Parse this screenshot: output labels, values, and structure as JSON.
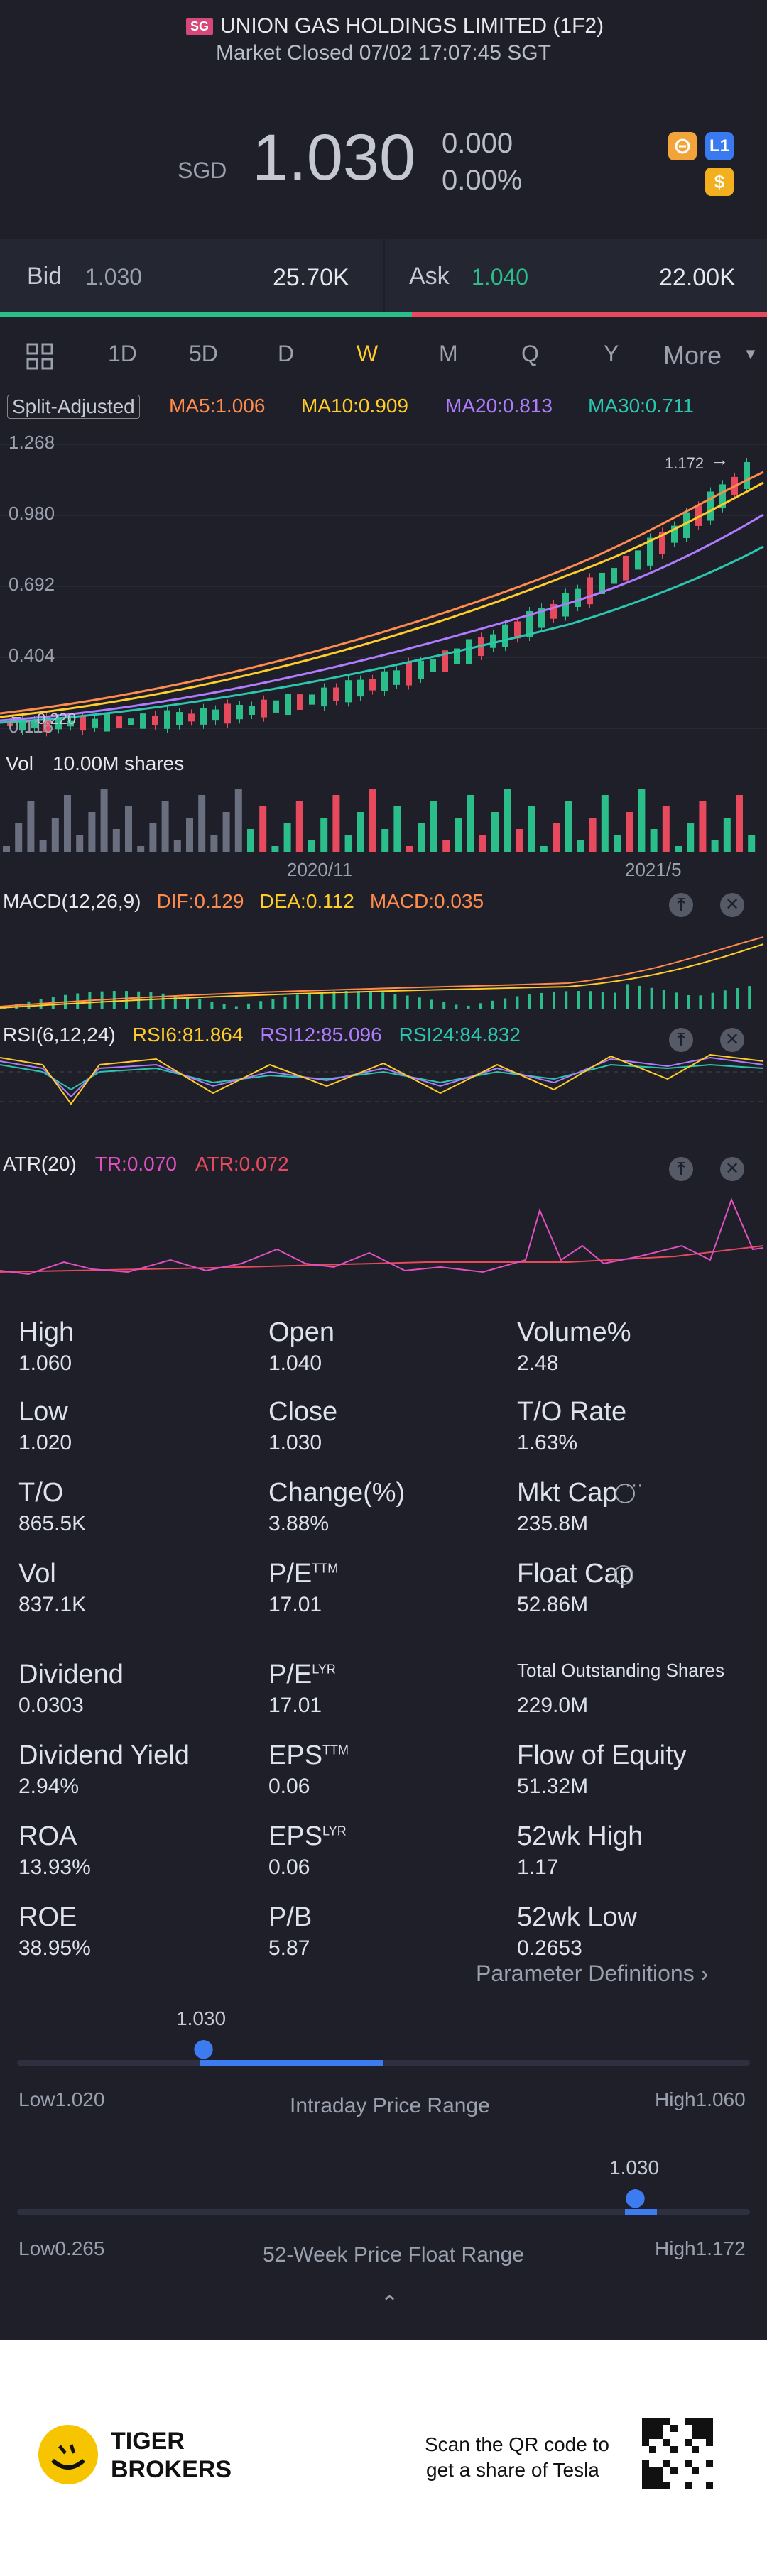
{
  "header": {
    "exchange_badge": "SG",
    "company": "UNION GAS HOLDINGS LIMITED (1F2)",
    "status": "Market Closed 07/02 17:07:45 SGT"
  },
  "quote": {
    "currency": "SGD",
    "price": "1.030",
    "change": "0.000",
    "change_pct": "0.00%",
    "badge_l1": "L1",
    "badge_dollar": "$"
  },
  "orderbook": {
    "bid_label": "Bid",
    "bid_price": "1.030",
    "bid_size": "25.70K",
    "ask_label": "Ask",
    "ask_price": "1.040",
    "ask_size": "22.00K"
  },
  "tabs": [
    "1D",
    "5D",
    "D",
    "W",
    "M",
    "Q",
    "Y"
  ],
  "active_tab": "W",
  "more_label": "More",
  "ma_bar": {
    "split": "Split-Adjusted",
    "ma5": "MA5:1.006",
    "ma10": "MA10:0.909",
    "ma20": "MA20:0.813",
    "ma30": "MA30:0.711"
  },
  "price_axis": [
    "1.268",
    "0.980",
    "0.692",
    "0.404",
    "0.116"
  ],
  "price_annotations": {
    "high_label": "1.172",
    "low_label": "0.220"
  },
  "volume": {
    "label": "Vol",
    "value": "10.00M shares",
    "dates": [
      "2020/11",
      "2021/5"
    ]
  },
  "macd": {
    "label": "MACD(12,26,9)",
    "dif": "DIF:0.129",
    "dea": "DEA:0.112",
    "macd": "MACD:0.035"
  },
  "rsi": {
    "label": "RSI(6,12,24)",
    "rsi6": "RSI6:81.864",
    "rsi12": "RSI12:85.096",
    "rsi24": "RSI24:84.832"
  },
  "atr": {
    "label": "ATR(20)",
    "tr": "TR:0.070",
    "atr": "ATR:0.072"
  },
  "colors": {
    "up": "#2bbd8a",
    "down": "#e64a5c",
    "ma5": "#ff8b4d",
    "ma10": "#ffcc29",
    "ma20": "#b07cff",
    "ma30": "#2cc6b0",
    "accent": "#ffcc29",
    "range_fill": "#3d7cf0"
  },
  "stats": {
    "col1": [
      {
        "label": "High",
        "value": "1.060"
      },
      {
        "label": "Low",
        "value": "1.020"
      },
      {
        "label": "T/O",
        "value": "865.5K"
      },
      {
        "label": "Vol",
        "value": "837.1K"
      },
      {
        "label": "Dividend",
        "value": "0.0303"
      },
      {
        "label": "Dividend Yield",
        "value": "2.94%"
      },
      {
        "label": "ROA",
        "value": "13.93%"
      },
      {
        "label": "ROE",
        "value": "38.95%"
      }
    ],
    "col2": [
      {
        "label": "Open",
        "value": "1.040",
        "sup": ""
      },
      {
        "label": "Close",
        "value": "1.030",
        "sup": ""
      },
      {
        "label": "Change(%)",
        "value": "3.88%",
        "sup": ""
      },
      {
        "label": "P/E",
        "value": "17.01",
        "sup": "TTM"
      },
      {
        "label": "P/E",
        "value": "17.01",
        "sup": "LYR"
      },
      {
        "label": "EPS",
        "value": "0.06",
        "sup": "TTM"
      },
      {
        "label": "EPS",
        "value": "0.06",
        "sup": "LYR"
      },
      {
        "label": "P/B",
        "value": "5.87",
        "sup": ""
      }
    ],
    "col3": [
      {
        "label": "Volume%",
        "value": "2.48"
      },
      {
        "label": "T/O Rate",
        "value": "1.63%"
      },
      {
        "label": "Mkt Cap",
        "value": "235.8M"
      },
      {
        "label": "Float Cap",
        "value": "52.86M"
      },
      {
        "label": "Total Outstanding Shares",
        "value": "229.0M"
      },
      {
        "label": "Flow of Equity",
        "value": "51.32M"
      },
      {
        "label": "52wk High",
        "value": "1.17"
      },
      {
        "label": "52wk Low",
        "value": "0.2653"
      }
    ]
  },
  "param_defs": "Parameter Definitions",
  "intraday": {
    "marker": "1.030",
    "low": "Low1.020",
    "title": "Intraday Price Range",
    "high": "High1.060",
    "position": 0.25
  },
  "week52": {
    "marker": "1.030",
    "low": "Low0.265",
    "title": "52-Week Price Float Range",
    "high": "High1.172",
    "position": 0.84
  },
  "footer": {
    "brand_line1": "TIGER",
    "brand_line2": "BROKERS",
    "promo_line1": "Scan the QR code to",
    "promo_line2": "get a share of Tesla"
  }
}
